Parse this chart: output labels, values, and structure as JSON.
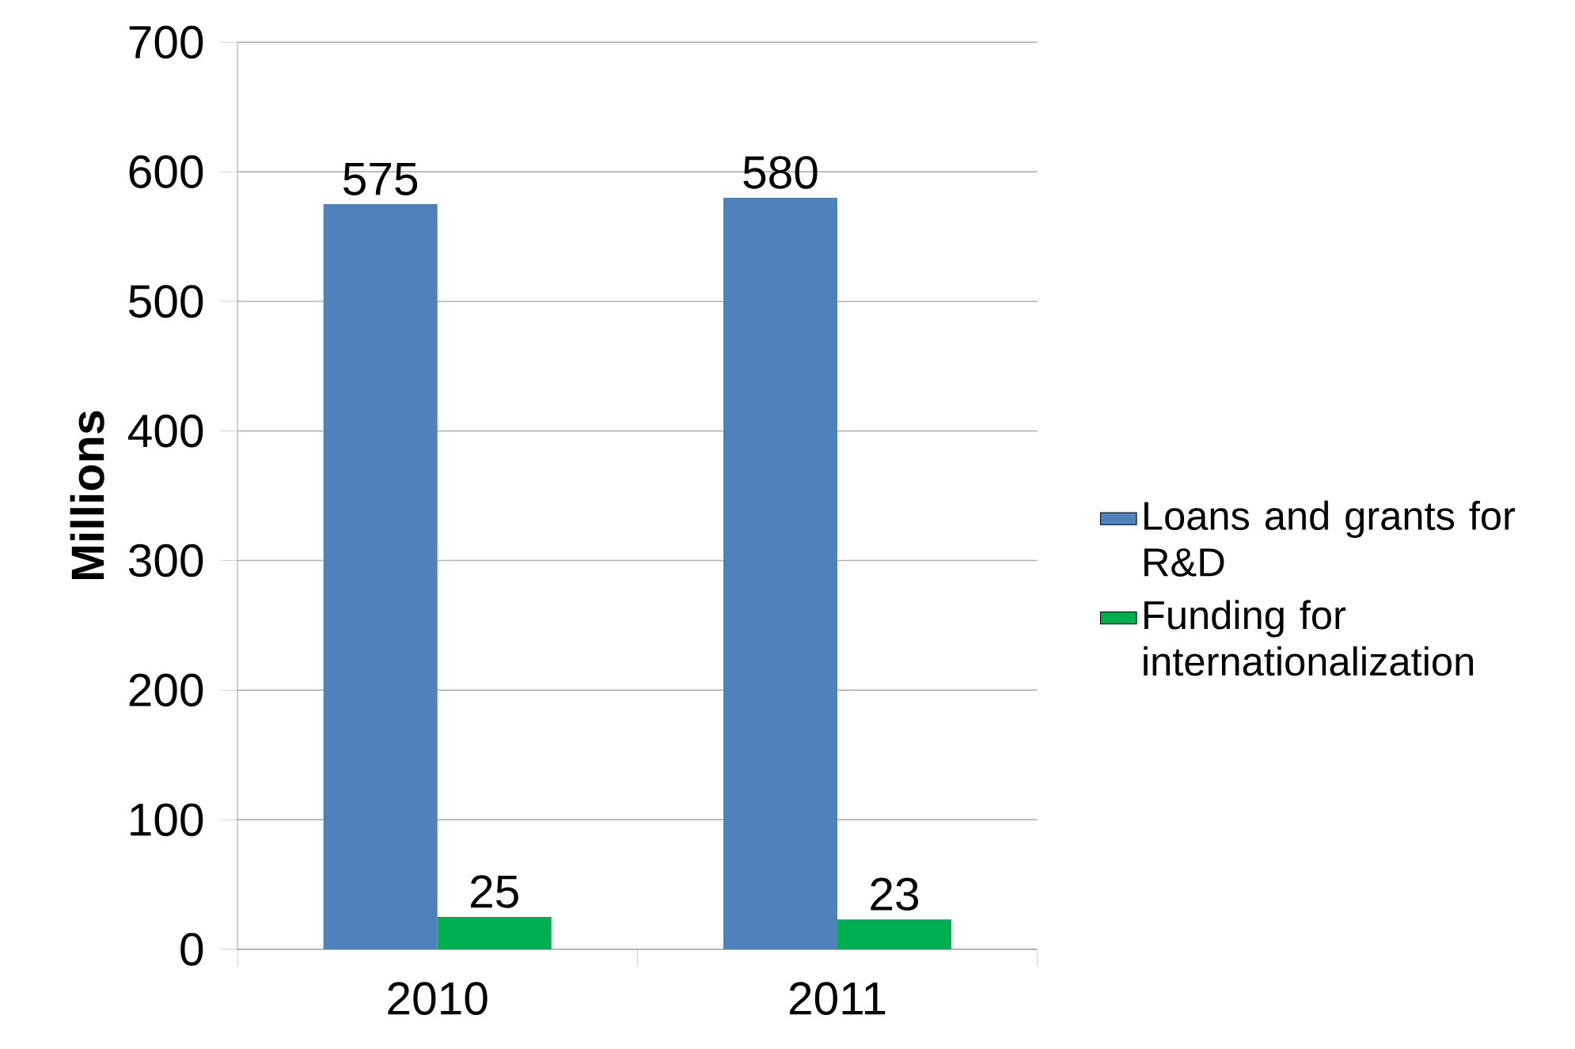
{
  "chart_data": {
    "type": "bar",
    "ylabel": "Millions",
    "categories": [
      "2010",
      "2011"
    ],
    "series": [
      {
        "name": "Loans and grants for R&D",
        "color": "#4f81bd",
        "values": [
          575,
          580
        ]
      },
      {
        "name": "Funding for internationalization",
        "color": "#00b050",
        "values": [
          25,
          23
        ]
      }
    ],
    "ylim": [
      0,
      700
    ],
    "yticks": [
      0,
      100,
      200,
      300,
      400,
      500,
      600,
      700
    ],
    "grid": "y",
    "legend": "right",
    "data_labels": true
  }
}
